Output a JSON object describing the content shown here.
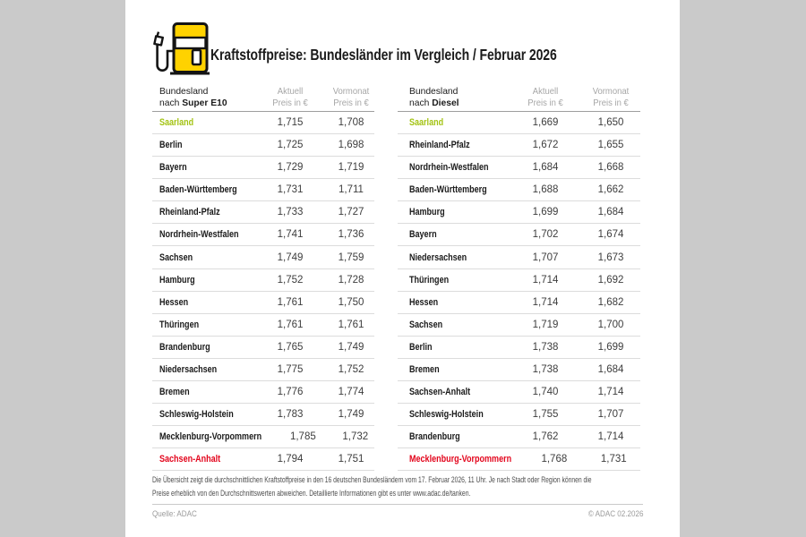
{
  "header": {
    "title": "Kraftstoffpreise: Bundesländer im Vergleich / Februar 2026",
    "icon": "fuel-pump-icon"
  },
  "tables": [
    {
      "id": "super-e10",
      "state_header_line1": "Bundesland",
      "state_header_prefix": "nach ",
      "state_header_bold": "Super E10",
      "col1_line1": "Aktuell",
      "col1_line2": "Preis in €",
      "col2_line1": "Vormonat",
      "col2_line2": "Preis in €",
      "rows": [
        {
          "state": "Saarland",
          "current": "1,715",
          "previous": "1,708",
          "highlight": "green"
        },
        {
          "state": "Berlin",
          "current": "1,725",
          "previous": "1,698",
          "highlight": ""
        },
        {
          "state": "Bayern",
          "current": "1,729",
          "previous": "1,719",
          "highlight": ""
        },
        {
          "state": "Baden-Württemberg",
          "current": "1,731",
          "previous": "1,711",
          "highlight": ""
        },
        {
          "state": "Rheinland-Pfalz",
          "current": "1,733",
          "previous": "1,727",
          "highlight": ""
        },
        {
          "state": "Nordrhein-Westfalen",
          "current": "1,741",
          "previous": "1,736",
          "highlight": ""
        },
        {
          "state": "Sachsen",
          "current": "1,749",
          "previous": "1,759",
          "highlight": ""
        },
        {
          "state": "Hamburg",
          "current": "1,752",
          "previous": "1,728",
          "highlight": ""
        },
        {
          "state": "Hessen",
          "current": "1,761",
          "previous": "1,750",
          "highlight": ""
        },
        {
          "state": "Thüringen",
          "current": "1,761",
          "previous": "1,761",
          "highlight": ""
        },
        {
          "state": "Brandenburg",
          "current": "1,765",
          "previous": "1,749",
          "highlight": ""
        },
        {
          "state": "Niedersachsen",
          "current": "1,775",
          "previous": "1,752",
          "highlight": ""
        },
        {
          "state": "Bremen",
          "current": "1,776",
          "previous": "1,774",
          "highlight": ""
        },
        {
          "state": "Schleswig-Holstein",
          "current": "1,783",
          "previous": "1,749",
          "highlight": ""
        },
        {
          "state": "Mecklenburg-Vorpommern",
          "current": "1,785",
          "previous": "1,732",
          "highlight": ""
        },
        {
          "state": "Sachsen-Anhalt",
          "current": "1,794",
          "previous": "1,751",
          "highlight": "red"
        }
      ]
    },
    {
      "id": "diesel",
      "state_header_line1": "Bundesland",
      "state_header_prefix": "nach ",
      "state_header_bold": "Diesel",
      "col1_line1": "Aktuell",
      "col1_line2": "Preis in €",
      "col2_line1": "Vormonat",
      "col2_line2": "Preis in €",
      "rows": [
        {
          "state": "Saarland",
          "current": "1,669",
          "previous": "1,650",
          "highlight": "green"
        },
        {
          "state": "Rheinland-Pfalz",
          "current": "1,672",
          "previous": "1,655",
          "highlight": ""
        },
        {
          "state": "Nordrhein-Westfalen",
          "current": "1,684",
          "previous": "1,668",
          "highlight": ""
        },
        {
          "state": "Baden-Württemberg",
          "current": "1,688",
          "previous": "1,662",
          "highlight": ""
        },
        {
          "state": "Hamburg",
          "current": "1,699",
          "previous": "1,684",
          "highlight": ""
        },
        {
          "state": "Bayern",
          "current": "1,702",
          "previous": "1,674",
          "highlight": ""
        },
        {
          "state": "Niedersachsen",
          "current": "1,707",
          "previous": "1,673",
          "highlight": ""
        },
        {
          "state": "Thüringen",
          "current": "1,714",
          "previous": "1,692",
          "highlight": ""
        },
        {
          "state": "Hessen",
          "current": "1,714",
          "previous": "1,682",
          "highlight": ""
        },
        {
          "state": "Sachsen",
          "current": "1,719",
          "previous": "1,700",
          "highlight": ""
        },
        {
          "state": "Berlin",
          "current": "1,738",
          "previous": "1,699",
          "highlight": ""
        },
        {
          "state": "Bremen",
          "current": "1,738",
          "previous": "1,684",
          "highlight": ""
        },
        {
          "state": "Sachsen-Anhalt",
          "current": "1,740",
          "previous": "1,714",
          "highlight": ""
        },
        {
          "state": "Schleswig-Holstein",
          "current": "1,755",
          "previous": "1,707",
          "highlight": ""
        },
        {
          "state": "Brandenburg",
          "current": "1,762",
          "previous": "1,714",
          "highlight": ""
        },
        {
          "state": "Mecklenburg-Vorpommern",
          "current": "1,768",
          "previous": "1,731",
          "highlight": "red"
        }
      ]
    }
  ],
  "footnote": {
    "lines": [
      "Die Übersicht zeigt die durchschnittlichen Kraftstoffpreise in den 16 deutschen Bundesländern vom 17. Februar 2026, 11 Uhr. Je nach Stadt oder Region können die",
      "Preise erheblich von den Durchschnittswerten abweichen. Detaillierte Informationen gibt es unter www.adac.de/tanken."
    ]
  },
  "colophon": {
    "source": "Quelle: ADAC",
    "copyright": "© ADAC 02.2026"
  },
  "colors": {
    "accent_green": "#a3c313",
    "accent_red": "#e3051c",
    "brand_yellow": "#ffd200",
    "side_gray": "#cacaca"
  }
}
